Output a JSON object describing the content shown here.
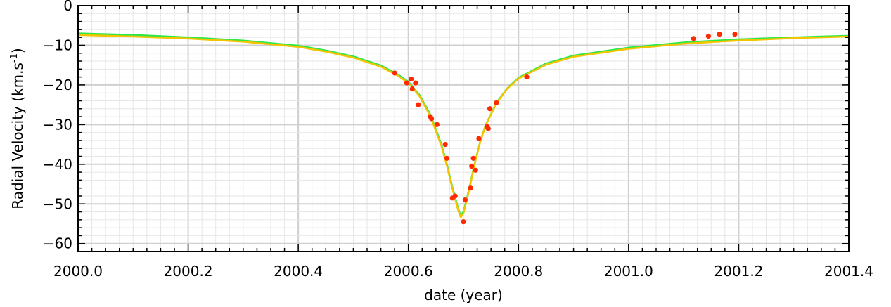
{
  "chart_data": {
    "type": "line",
    "xlabel": "date (year)",
    "ylabel": "Radial Velocity (km.s",
    "ylabel_sup": "-1",
    "ylabel_close": ")",
    "xlim": [
      2000.0,
      2001.4
    ],
    "ylim": [
      -62,
      0
    ],
    "grid": true,
    "x_ticks": [
      2000.0,
      2000.2,
      2000.4,
      2000.6,
      2000.8,
      2001.0,
      2001.2,
      2001.4
    ],
    "x_tick_labels": [
      "2000.0",
      "2000.2",
      "2000.4",
      "2000.6",
      "2000.8",
      "2001.0",
      "2001.2",
      "2001.4"
    ],
    "y_ticks": [
      0,
      -10,
      -20,
      -30,
      -40,
      -50,
      -60
    ],
    "y_tick_labels": [
      "0",
      "−10",
      "−20",
      "−30",
      "−40",
      "−50",
      "−60"
    ],
    "colors": {
      "model_a": "#2ee84a",
      "model_b": "#f5c400",
      "points": "#ff2a00",
      "grid_major": "#cfcfcf",
      "grid_minor": "#e6e6e6"
    },
    "series": [
      {
        "kind": "line",
        "color": "#2ee84a",
        "x": [
          2000.0,
          2000.1,
          2000.2,
          2000.3,
          2000.4,
          2000.45,
          2000.5,
          2000.55,
          2000.58,
          2000.6,
          2000.62,
          2000.64,
          2000.66,
          2000.67,
          2000.68,
          2000.69,
          2000.695,
          2000.7,
          2000.71,
          2000.72,
          2000.73,
          2000.74,
          2000.76,
          2000.78,
          2000.8,
          2000.85,
          2000.9,
          2001.0,
          2001.1,
          2001.2,
          2001.3,
          2001.4
        ],
        "y": [
          -7.0,
          -7.4,
          -8.0,
          -8.8,
          -10.1,
          -11.3,
          -12.8,
          -15.1,
          -17.3,
          -19.2,
          -22.5,
          -27.5,
          -35.0,
          -40.0,
          -45.8,
          -51.0,
          -53.0,
          -52.0,
          -46.5,
          -40.0,
          -34.5,
          -30.2,
          -24.5,
          -20.8,
          -18.2,
          -14.6,
          -12.6,
          -10.6,
          -9.3,
          -8.5,
          -8.0,
          -7.6
        ]
      },
      {
        "kind": "line",
        "color": "#f5c400",
        "x": [
          2000.0,
          2000.1,
          2000.2,
          2000.3,
          2000.4,
          2000.45,
          2000.5,
          2000.55,
          2000.58,
          2000.6,
          2000.62,
          2000.64,
          2000.66,
          2000.67,
          2000.68,
          2000.69,
          2000.695,
          2000.7,
          2000.71,
          2000.72,
          2000.73,
          2000.74,
          2000.76,
          2000.78,
          2000.8,
          2000.85,
          2000.9,
          2001.0,
          2001.1,
          2001.2,
          2001.3,
          2001.4
        ],
        "y": [
          -7.4,
          -7.8,
          -8.3,
          -9.1,
          -10.4,
          -11.6,
          -13.1,
          -15.4,
          -17.6,
          -19.5,
          -22.8,
          -27.9,
          -35.4,
          -40.4,
          -46.2,
          -51.4,
          -53.4,
          -52.4,
          -46.8,
          -40.2,
          -34.6,
          -30.3,
          -24.6,
          -20.9,
          -18.4,
          -14.9,
          -12.9,
          -10.9,
          -9.6,
          -8.8,
          -8.2,
          -7.8
        ]
      },
      {
        "kind": "scatter",
        "color": "#ff2a00",
        "x": [
          2000.575,
          2000.597,
          2000.605,
          2000.607,
          2000.613,
          2000.618,
          2000.64,
          2000.642,
          2000.652,
          2000.667,
          2000.67,
          2000.68,
          2000.685,
          2000.7,
          2000.703,
          2000.713,
          2000.715,
          2000.718,
          2000.722,
          2000.728,
          2000.743,
          2000.745,
          2000.748,
          2000.76,
          2000.815,
          2001.118,
          2001.145,
          2001.165,
          2001.193
        ],
        "y": [
          -17.0,
          -19.5,
          -18.5,
          -21.0,
          -19.5,
          -25.0,
          -28.0,
          -28.5,
          -30.0,
          -35.0,
          -38.5,
          -48.5,
          -48.0,
          -54.5,
          -49.0,
          -46.0,
          -40.5,
          -38.5,
          -41.5,
          -33.5,
          -30.5,
          -31.0,
          -26.0,
          -24.5,
          -18.0,
          -8.3,
          -7.7,
          -7.2,
          -7.2
        ]
      }
    ]
  }
}
